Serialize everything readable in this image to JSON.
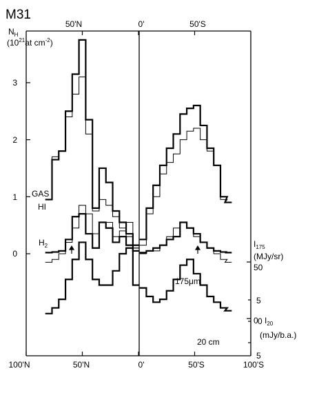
{
  "chart_data": {
    "type": "line",
    "title": "M31",
    "top_axis": {
      "ticks": [
        "50'N",
        "0'",
        "50'S"
      ]
    },
    "bottom_axis": {
      "ticks": [
        "100'N",
        "50'N",
        "0'",
        "50'S",
        "100'S"
      ]
    },
    "xlim": [
      100,
      -100
    ],
    "left_axis": {
      "label": {
        "main": "N",
        "main_sub": "H",
        "line2_pre": "(10",
        "line2_sup": "21",
        "line2_mid": "at cm",
        "line2_sup2": "-2",
        "line2_post": ")"
      },
      "ticks": [
        "0",
        "1",
        "2",
        "3"
      ],
      "ylim": [
        -0.6,
        4.0
      ]
    },
    "right_axis_i175": {
      "label": {
        "sym": "I",
        "sub": "175",
        "unit": "(MJy/sr)"
      },
      "ticks": [
        "50",
        "0"
      ]
    },
    "right_axis_i20": {
      "label": {
        "sym": "I",
        "sub": "20",
        "unit": "(mJy/b.a.)"
      },
      "ticks": [
        "5",
        "0",
        "5"
      ]
    },
    "annotations": {
      "gas": "GAS",
      "hi": "HI",
      "h2_main": "H",
      "h2_sub": "2",
      "um175": "175μm",
      "cm20": "20 cm"
    },
    "series": [
      {
        "name": "GAS",
        "style": "thick",
        "x": [
          80,
          74,
          68,
          62,
          56,
          50,
          44,
          38,
          32,
          26,
          20,
          14,
          8,
          2,
          -4,
          -10,
          -16,
          -22,
          -28,
          -34,
          -40,
          -46,
          -52,
          -58,
          -64,
          -70,
          -76,
          -80
        ],
        "y": [
          0.95,
          1.65,
          1.8,
          2.5,
          3.15,
          3.75,
          2.35,
          0.8,
          1.5,
          1.25,
          0.75,
          0.55,
          0.35,
          0.15,
          0.25,
          0.8,
          1.2,
          1.55,
          1.85,
          2.1,
          2.45,
          2.55,
          2.6,
          2.25,
          1.85,
          1.55,
          1.0,
          0.9
        ]
      },
      {
        "name": "HI",
        "style": "thin",
        "x": [
          80,
          74,
          68,
          62,
          56,
          50,
          44,
          38,
          32,
          26,
          20,
          14,
          8,
          2,
          -4,
          -10,
          -16,
          -22,
          -28,
          -34,
          -40,
          -46,
          -52,
          -58,
          -64,
          -70,
          -76,
          -80
        ],
        "y": [
          0.95,
          1.7,
          1.8,
          2.4,
          2.8,
          3.1,
          2.1,
          0.75,
          0.95,
          0.85,
          0.65,
          0.45,
          0.3,
          0.1,
          0.15,
          0.7,
          1.0,
          1.4,
          1.6,
          1.75,
          2.0,
          2.15,
          2.2,
          2.0,
          1.8,
          1.55,
          0.95,
          0.9
        ]
      },
      {
        "name": "H2",
        "style": "thick",
        "x": [
          80,
          74,
          68,
          62,
          56,
          50,
          44,
          38,
          32,
          26,
          20,
          14,
          8,
          2,
          -4,
          -10,
          -16,
          -22,
          -28,
          -34,
          -40,
          -46,
          -52,
          -58,
          -64,
          -70,
          -76,
          -80
        ],
        "y": [
          0.02,
          0.03,
          0.05,
          0.25,
          0.65,
          0.7,
          0.35,
          0.1,
          0.55,
          0.45,
          0.2,
          0.3,
          0.15,
          0.05,
          0.02,
          0.05,
          0.1,
          0.15,
          0.25,
          0.3,
          0.55,
          0.45,
          0.35,
          0.2,
          0.1,
          0.05,
          0.03,
          0.02
        ]
      },
      {
        "name": "175μm",
        "style": "thin",
        "x": [
          80,
          74,
          68,
          62,
          56,
          50,
          44,
          38,
          32,
          26,
          20,
          14,
          8,
          2,
          -4,
          -10,
          -16,
          -22,
          -28,
          -34,
          -40,
          -46,
          -52,
          -58,
          -64,
          -70,
          -76,
          -80
        ],
        "y": [
          -0.15,
          -0.1,
          0.0,
          0.2,
          0.45,
          0.85,
          0.7,
          0.35,
          0.55,
          0.55,
          0.3,
          0.4,
          0.55,
          0.1,
          0.0,
          0.05,
          0.05,
          0.15,
          0.3,
          0.45,
          0.55,
          0.45,
          0.3,
          0.2,
          0.1,
          0.0,
          -0.1,
          -0.15
        ]
      },
      {
        "name": "20 cm",
        "style": "thick",
        "x": [
          80,
          74,
          68,
          62,
          56,
          50,
          44,
          38,
          32,
          26,
          20,
          14,
          8,
          2,
          -4,
          -10,
          -16,
          -22,
          -28,
          -34,
          -40,
          -46,
          -52,
          -58,
          -64,
          -70,
          -76,
          -80
        ],
        "y": [
          -1.05,
          -0.95,
          -0.8,
          -0.45,
          -0.1,
          0.2,
          -0.1,
          -0.45,
          -0.55,
          -0.55,
          -0.3,
          0.0,
          0.1,
          -0.55,
          -0.6,
          -0.75,
          -0.85,
          -0.8,
          -0.65,
          -0.45,
          -0.2,
          -0.1,
          -0.35,
          -0.55,
          -0.75,
          -0.85,
          -0.95,
          -1.0
        ]
      }
    ]
  }
}
